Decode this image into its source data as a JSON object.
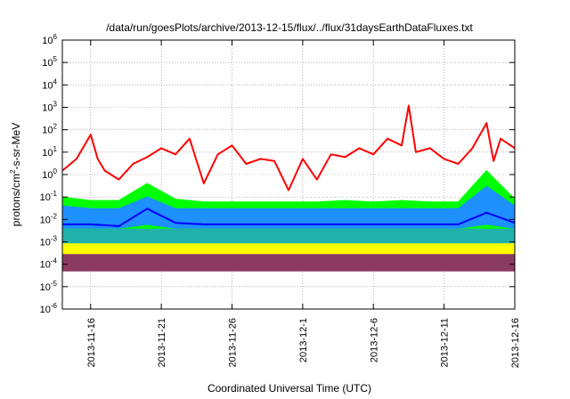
{
  "chart_data": {
    "type": "line",
    "title": "/data/run/goesPlots/archive/2013-12-15/flux/../flux/31daysEarthDataFluxes.txt",
    "xlabel": "Coordinated Universal Time (UTC)",
    "ylabel_parts": [
      "protons/cm",
      "2",
      "-s-sr-MeV"
    ],
    "y_scale": "log",
    "ylim": [
      1e-06,
      1000000.0
    ],
    "y_ticks": [
      {
        "value": 1e-06,
        "base": "10",
        "exp": "-6"
      },
      {
        "value": 1e-05,
        "base": "10",
        "exp": "-5"
      },
      {
        "value": 0.0001,
        "base": "10",
        "exp": "-4"
      },
      {
        "value": 0.001,
        "base": "10",
        "exp": "-3"
      },
      {
        "value": 0.01,
        "base": "10",
        "exp": "-2"
      },
      {
        "value": 0.1,
        "base": "10",
        "exp": "-1"
      },
      {
        "value": 1,
        "base": "10",
        "exp": "0"
      },
      {
        "value": 10,
        "base": "10",
        "exp": "1"
      },
      {
        "value": 100,
        "base": "10",
        "exp": "2"
      },
      {
        "value": 1000,
        "base": "10",
        "exp": "3"
      },
      {
        "value": 10000,
        "base": "10",
        "exp": "4"
      },
      {
        "value": 100000,
        "base": "10",
        "exp": "5"
      },
      {
        "value": 1000000,
        "base": "10",
        "exp": "6"
      }
    ],
    "xlim": [
      "2013-11-14",
      "2013-12-16"
    ],
    "x_ticks": [
      "2013-11-16",
      "2013-11-21",
      "2013-11-26",
      "2013-12-1",
      "2013-12-6",
      "2013-12-11",
      "2013-12-16"
    ],
    "grid": true,
    "series": [
      {
        "color": "#8b3a62",
        "x": [
          "2013-11-14",
          "2013-11-16",
          "2013-11-18",
          "2013-11-20",
          "2013-11-22",
          "2013-11-24",
          "2013-11-26",
          "2013-11-28",
          "2013-11-30",
          "2013-12-02",
          "2013-12-04",
          "2013-12-06",
          "2013-12-08",
          "2013-12-10",
          "2013-12-12",
          "2013-12-14",
          "2013-12-16"
        ],
        "y_low": [
          5e-05,
          5e-05,
          5e-05,
          5e-05,
          5e-05,
          5e-05,
          5e-05,
          5e-05,
          5e-05,
          5e-05,
          5e-05,
          5e-05,
          5e-05,
          5e-05,
          5e-05,
          5e-05,
          5e-05
        ],
        "y_high": [
          0.0003,
          0.0003,
          0.0003,
          0.0003,
          0.0003,
          0.0003,
          0.0003,
          0.0003,
          0.0003,
          0.0003,
          0.0003,
          0.0003,
          0.0003,
          0.0003,
          0.0003,
          0.0003,
          0.0003
        ]
      },
      {
        "color": "#ffff00",
        "x": [
          "2013-11-14",
          "2013-11-16",
          "2013-11-18",
          "2013-11-20",
          "2013-11-22",
          "2013-11-24",
          "2013-11-26",
          "2013-11-28",
          "2013-11-30",
          "2013-12-02",
          "2013-12-04",
          "2013-12-06",
          "2013-12-08",
          "2013-12-10",
          "2013-12-12",
          "2013-12-14",
          "2013-12-16"
        ],
        "y_low": [
          0.0003,
          0.0003,
          0.0003,
          0.0003,
          0.0003,
          0.0003,
          0.0003,
          0.0003,
          0.0003,
          0.0003,
          0.0003,
          0.0003,
          0.0003,
          0.0003,
          0.0003,
          0.0003,
          0.0003
        ],
        "y_high": [
          0.0009,
          0.0009,
          0.0009,
          0.0009,
          0.0009,
          0.0009,
          0.0009,
          0.0009,
          0.0009,
          0.0009,
          0.0009,
          0.0009,
          0.0009,
          0.0009,
          0.0009,
          0.0009,
          0.0009
        ]
      },
      {
        "color": "#20b2aa",
        "x": [
          "2013-11-14",
          "2013-11-16",
          "2013-11-18",
          "2013-11-20",
          "2013-11-22",
          "2013-11-24",
          "2013-11-26",
          "2013-11-28",
          "2013-11-30",
          "2013-12-02",
          "2013-12-04",
          "2013-12-06",
          "2013-12-08",
          "2013-12-10",
          "2013-12-12",
          "2013-12-14",
          "2013-12-16"
        ],
        "y_low": [
          0.0009,
          0.0009,
          0.0009,
          0.0009,
          0.0009,
          0.0009,
          0.0009,
          0.0009,
          0.0009,
          0.0009,
          0.0009,
          0.0009,
          0.0009,
          0.0009,
          0.0009,
          0.0009,
          0.0009
        ],
        "y_high": [
          0.004,
          0.004,
          0.004,
          0.006,
          0.004,
          0.004,
          0.004,
          0.004,
          0.004,
          0.004,
          0.004,
          0.004,
          0.004,
          0.004,
          0.004,
          0.006,
          0.004
        ]
      },
      {
        "color": "#00ff00",
        "x": [
          "2013-11-14",
          "2013-11-16",
          "2013-11-18",
          "2013-11-20",
          "2013-11-22",
          "2013-11-24",
          "2013-11-26",
          "2013-11-28",
          "2013-11-30",
          "2013-12-02",
          "2013-12-04",
          "2013-12-06",
          "2013-12-08",
          "2013-12-10",
          "2013-12-12",
          "2013-12-14",
          "2013-12-16"
        ],
        "y_low": [
          0.004,
          0.004,
          0.004,
          0.004,
          0.004,
          0.004,
          0.004,
          0.004,
          0.004,
          0.004,
          0.004,
          0.004,
          0.004,
          0.004,
          0.004,
          0.004,
          0.004
        ],
        "y_high": [
          0.1,
          0.07,
          0.07,
          0.4,
          0.08,
          0.06,
          0.06,
          0.06,
          0.06,
          0.06,
          0.07,
          0.06,
          0.07,
          0.06,
          0.06,
          1.5,
          0.08
        ]
      },
      {
        "color": "#1e90ff",
        "x": [
          "2013-11-14",
          "2013-11-16",
          "2013-11-18",
          "2013-11-20",
          "2013-11-22",
          "2013-11-24",
          "2013-11-26",
          "2013-11-28",
          "2013-11-30",
          "2013-12-02",
          "2013-12-04",
          "2013-12-06",
          "2013-12-08",
          "2013-12-10",
          "2013-12-12",
          "2013-12-14",
          "2013-12-16"
        ],
        "y_low": [
          0.004,
          0.004,
          0.004,
          0.006,
          0.004,
          0.004,
          0.004,
          0.004,
          0.004,
          0.004,
          0.004,
          0.004,
          0.004,
          0.004,
          0.004,
          0.006,
          0.004
        ],
        "y_high": [
          0.04,
          0.03,
          0.03,
          0.1,
          0.03,
          0.03,
          0.03,
          0.03,
          0.03,
          0.03,
          0.03,
          0.03,
          0.03,
          0.03,
          0.03,
          0.3,
          0.04
        ]
      },
      {
        "color": "#0000ff",
        "x": [
          "2013-11-14",
          "2013-11-16",
          "2013-11-18",
          "2013-11-20",
          "2013-11-22",
          "2013-11-24",
          "2013-11-26",
          "2013-11-28",
          "2013-11-30",
          "2013-12-02",
          "2013-12-04",
          "2013-12-06",
          "2013-12-08",
          "2013-12-10",
          "2013-12-12",
          "2013-12-14",
          "2013-12-16"
        ],
        "y": [
          0.006,
          0.006,
          0.005,
          0.03,
          0.007,
          0.006,
          0.006,
          0.006,
          0.006,
          0.006,
          0.006,
          0.006,
          0.006,
          0.006,
          0.006,
          0.02,
          0.007
        ]
      },
      {
        "color": "#ff0000",
        "x": [
          "2013-11-14",
          "2013-11-15",
          "2013-11-16",
          "2013-11-16.5",
          "2013-11-17",
          "2013-11-18",
          "2013-11-19",
          "2013-11-20",
          "2013-11-21",
          "2013-11-22",
          "2013-11-23",
          "2013-11-24",
          "2013-11-25",
          "2013-11-26",
          "2013-11-27",
          "2013-11-28",
          "2013-11-29",
          "2013-11-30",
          "2013-12-01",
          "2013-12-02",
          "2013-12-03",
          "2013-12-04",
          "2013-12-05",
          "2013-12-06",
          "2013-12-07",
          "2013-12-08",
          "2013-12-08.5",
          "2013-12-09",
          "2013-12-10",
          "2013-12-11",
          "2013-12-12",
          "2013-12-13",
          "2013-12-14",
          "2013-12-14.5",
          "2013-12-15",
          "2013-12-16"
        ],
        "y": [
          1.5,
          5,
          60,
          5,
          1.5,
          0.6,
          3,
          6,
          15,
          8,
          40,
          0.4,
          8,
          20,
          3,
          5,
          4,
          0.2,
          5,
          0.6,
          8,
          6,
          15,
          8,
          40,
          20,
          1200,
          10,
          15,
          5,
          3,
          15,
          200,
          4,
          40,
          15
        ]
      }
    ]
  }
}
